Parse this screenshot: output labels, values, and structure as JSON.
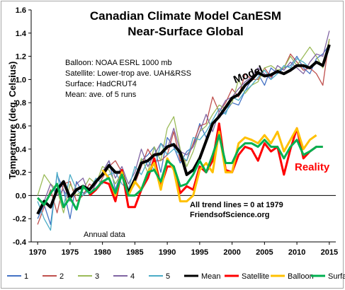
{
  "chart_data": {
    "type": "line",
    "title": "Canadian Climate Model CanESM",
    "subtitle": "Near-Surface Global",
    "ylabel": "Temperature  (deg. Celsius)",
    "xlabel": "",
    "xlim": [
      1969,
      2016
    ],
    "ylim": [
      -0.4,
      1.6
    ],
    "x_ticks": [
      "1970",
      "1975",
      "1980",
      "1985",
      "1990",
      "1995",
      "2000",
      "2005",
      "2010",
      "2015"
    ],
    "y_ticks": [
      "-0.4",
      "-0.2",
      "0.0",
      "0.2",
      "0.4",
      "0.6",
      "0.8",
      "1.0",
      "1.2",
      "1.4",
      "1.6"
    ],
    "notes": [
      "Balloon: NOAA ESRL 1000  mb",
      "Satellite: Lower-trop ave. UAH&RSS",
      "Surface: HadCRUT4",
      "Mean: ave. of 5 runs"
    ],
    "annotations": {
      "model": "Model",
      "reality": "Reality",
      "annual": "Annual data",
      "trend": "All trend lines = 0 at 1979",
      "source": "FriendsofScience.org"
    },
    "x": [
      1970,
      1971,
      1972,
      1973,
      1974,
      1975,
      1976,
      1977,
      1978,
      1979,
      1980,
      1981,
      1982,
      1983,
      1984,
      1985,
      1986,
      1987,
      1988,
      1989,
      1990,
      1991,
      1992,
      1993,
      1994,
      1995,
      1996,
      1997,
      1998,
      1999,
      2000,
      2001,
      2002,
      2003,
      2004,
      2005,
      2006,
      2007,
      2008,
      2009,
      2010,
      2011,
      2012,
      2013,
      2014,
      2015
    ],
    "series": [
      {
        "name": "1",
        "color": "#4472c4",
        "values": [
          -0.2,
          -0.08,
          -0.25,
          0.18,
          0.05,
          -0.2,
          0.12,
          0.02,
          0.05,
          0.1,
          0.2,
          0.3,
          0.05,
          0.22,
          0.0,
          0.15,
          0.3,
          0.35,
          0.42,
          0.2,
          0.5,
          0.42,
          0.28,
          0.38,
          0.42,
          0.62,
          0.5,
          0.62,
          0.68,
          0.72,
          0.8,
          0.78,
          0.9,
          1.0,
          1.05,
          0.95,
          1.1,
          1.05,
          1.1,
          1.12,
          1.2,
          1.1,
          1.05,
          1.18,
          1.22,
          1.3
        ]
      },
      {
        "name": "2",
        "color": "#c0504d",
        "values": [
          -0.25,
          -0.1,
          0.05,
          -0.15,
          0.1,
          0.12,
          -0.05,
          0.0,
          0.1,
          0.05,
          0.15,
          0.25,
          0.3,
          0.2,
          0.05,
          0.1,
          0.25,
          0.4,
          0.3,
          0.3,
          0.35,
          0.55,
          0.3,
          0.3,
          0.45,
          0.6,
          0.62,
          0.85,
          0.72,
          0.8,
          0.92,
          0.85,
          1.05,
          1.0,
          1.0,
          1.1,
          1.02,
          1.08,
          1.1,
          1.22,
          1.15,
          1.08,
          1.1,
          1.05,
          0.95,
          1.35
        ]
      },
      {
        "name": "3",
        "color": "#9bbb59",
        "values": [
          0.0,
          0.18,
          0.1,
          0.05,
          -0.15,
          0.1,
          0.0,
          0.05,
          0.15,
          0.1,
          0.25,
          0.22,
          0.1,
          0.2,
          0.0,
          0.1,
          0.32,
          0.2,
          0.42,
          0.3,
          0.58,
          0.68,
          0.4,
          0.25,
          0.38,
          0.55,
          0.6,
          0.7,
          0.78,
          0.75,
          0.8,
          1.0,
          0.88,
          0.95,
          0.98,
          1.1,
          1.12,
          1.08,
          1.1,
          1.2,
          1.12,
          1.2,
          1.28,
          1.2,
          1.1,
          1.35
        ]
      },
      {
        "name": "4",
        "color": "#8064a2",
        "values": [
          -0.15,
          -0.05,
          0.1,
          0.0,
          0.05,
          -0.05,
          0.1,
          0.15,
          0.0,
          0.1,
          0.2,
          0.3,
          0.15,
          0.25,
          0.1,
          0.2,
          0.4,
          0.25,
          0.35,
          0.45,
          0.4,
          0.58,
          0.38,
          0.35,
          0.42,
          0.55,
          0.7,
          0.55,
          0.72,
          0.82,
          0.85,
          0.92,
          0.98,
          1.02,
          1.1,
          1.05,
          1.0,
          1.12,
          1.08,
          1.15,
          1.1,
          1.05,
          1.15,
          1.22,
          1.2,
          1.42
        ]
      },
      {
        "name": "5",
        "color": "#4bacc6",
        "values": [
          -0.05,
          -0.2,
          -0.3,
          0.2,
          -0.1,
          0.18,
          0.05,
          0.0,
          0.05,
          0.15,
          0.1,
          0.18,
          0.2,
          0.1,
          0.05,
          0.25,
          0.18,
          0.3,
          0.22,
          0.45,
          0.35,
          0.4,
          0.35,
          0.3,
          0.5,
          0.48,
          0.55,
          0.65,
          0.75,
          0.7,
          0.85,
          0.82,
          0.9,
          0.95,
          1.02,
          1.08,
          1.0,
          1.05,
          1.12,
          1.1,
          1.18,
          1.15,
          1.1,
          1.15,
          1.12,
          1.3
        ]
      },
      {
        "name": "Mean",
        "color": "#000000",
        "values": [
          -0.16,
          -0.05,
          -0.1,
          0.05,
          0.12,
          -0.02,
          0.05,
          0.08,
          0.05,
          0.12,
          0.18,
          0.26,
          0.2,
          0.2,
          0.02,
          0.14,
          0.28,
          0.3,
          0.35,
          0.36,
          0.42,
          0.44,
          0.37,
          0.18,
          0.22,
          0.32,
          0.47,
          0.62,
          0.68,
          0.76,
          0.84,
          0.87,
          0.95,
          1.0,
          1.06,
          1.03,
          1.04,
          1.07,
          1.05,
          1.08,
          1.12,
          1.12,
          1.1,
          1.15,
          1.12,
          1.3
        ]
      },
      {
        "name": "Satellite",
        "color": "#ff0000",
        "values": [
          null,
          null,
          null,
          null,
          null,
          null,
          null,
          null,
          0.0,
          0.05,
          0.12,
          0.1,
          -0.05,
          0.22,
          -0.1,
          -0.1,
          0.05,
          0.15,
          0.32,
          0.08,
          0.25,
          0.25,
          0.02,
          0.08,
          0.05,
          0.25,
          0.2,
          0.3,
          0.62,
          0.22,
          0.2,
          0.35,
          0.42,
          0.4,
          0.3,
          0.45,
          0.38,
          0.42,
          0.18,
          0.4,
          0.58,
          0.32,
          0.38,
          0.42,
          0.42,
          null
        ]
      },
      {
        "name": "Balloon",
        "color": "#ffc000",
        "values": [
          null,
          null,
          null,
          null,
          null,
          null,
          null,
          null,
          null,
          null,
          0.22,
          0.15,
          0.0,
          0.2,
          0.0,
          0.12,
          0.05,
          0.2,
          0.28,
          0.05,
          0.32,
          0.22,
          -0.05,
          -0.05,
          0.0,
          0.22,
          0.28,
          0.2,
          0.55,
          0.2,
          0.2,
          0.45,
          0.5,
          0.48,
          0.45,
          0.52,
          0.45,
          0.55,
          0.38,
          0.48,
          0.58,
          0.4,
          0.48,
          0.52,
          null,
          null
        ]
      },
      {
        "name": "Surface",
        "color": "#00b050",
        "values": [
          -0.02,
          -0.08,
          0.02,
          0.1,
          -0.1,
          -0.02,
          -0.12,
          0.08,
          0.02,
          0.06,
          0.12,
          0.15,
          0.02,
          0.18,
          0.0,
          0.0,
          0.05,
          0.2,
          0.22,
          0.12,
          0.3,
          0.25,
          0.08,
          0.1,
          0.18,
          0.3,
          0.2,
          0.35,
          0.52,
          0.28,
          0.28,
          0.4,
          0.45,
          0.45,
          0.42,
          0.48,
          0.42,
          0.42,
          0.32,
          0.42,
          0.48,
          0.35,
          0.38,
          0.42,
          0.42,
          null
        ]
      }
    ],
    "legend_position": "bottom",
    "grid": false
  }
}
